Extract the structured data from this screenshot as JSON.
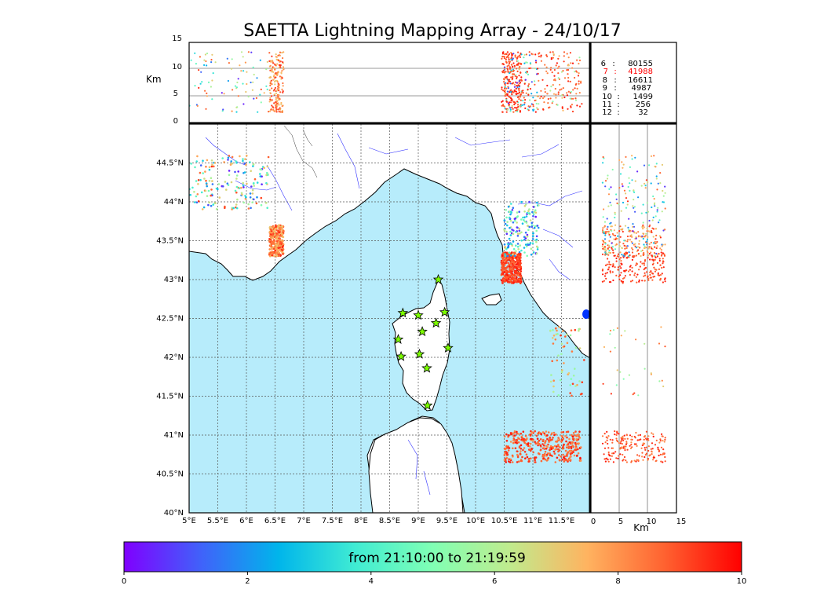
{
  "title": "SAETTA Lightning Mapping Array - 24/10/17",
  "alt_unit": "Km",
  "alt_ticks": [
    "0",
    "5",
    "10",
    "15"
  ],
  "lon_ticks": [
    "5°E",
    "5.5°E",
    "6°E",
    "6.5°E",
    "7°E",
    "7.5°E",
    "8°E",
    "8.5°E",
    "9°E",
    "9.5°E",
    "10°E",
    "10.5°E",
    "11°E",
    "11.5°E"
  ],
  "lat_ticks": [
    "40°N",
    "40.5°N",
    "41°N",
    "41.5°N",
    "42°N",
    "42.5°N",
    "43°N",
    "43.5°N",
    "44°N",
    "44.5°N"
  ],
  "stations_table": [
    {
      "label": "6",
      "value": "80155"
    },
    {
      "label": "7",
      "value": "41988"
    },
    {
      "label": "8",
      "value": "16611"
    },
    {
      "label": "9",
      "value": "4987"
    },
    {
      "label": "10",
      "value": "1499"
    },
    {
      "label": "11",
      "value": "256"
    },
    {
      "label": "12",
      "value": "32"
    }
  ],
  "highlight_color": "#ff0000",
  "colorbar": {
    "text": "from 21:10:00 to 21:19:59",
    "ticks": [
      "0",
      "2",
      "4",
      "6",
      "8",
      "10"
    ],
    "colormap": "rainbow"
  },
  "colors": {
    "sea": "#b7ecfb",
    "land": "#ffffff",
    "station_fill": "#7cfc00",
    "rivers": "#0000ff",
    "grid": "#555555"
  },
  "chart_data": {
    "type": "scatter",
    "title": "SAETTA Lightning Mapping Array - 24/10/17",
    "x": {
      "label": "",
      "range": [
        5,
        12
      ],
      "unit": "deg E"
    },
    "y": {
      "label": "",
      "range": [
        40,
        44.9
      ],
      "unit": "deg N"
    },
    "altitude_range_km": [
      0,
      15
    ],
    "time_range_min": [
      0,
      10
    ],
    "clusters": [
      {
        "lon": [
          5.0,
          6.4
        ],
        "lat": [
          43.9,
          44.6
        ],
        "t": [
          0.3,
          9.5
        ],
        "density": "medium"
      },
      {
        "lon": [
          6.4,
          6.65
        ],
        "lat": [
          43.3,
          43.7
        ],
        "t": [
          7.0,
          9.5
        ],
        "density": "high"
      },
      {
        "lon": [
          10.45,
          10.8
        ],
        "lat": [
          42.95,
          43.35
        ],
        "t": [
          8.5,
          9.8
        ],
        "density": "high"
      },
      {
        "lon": [
          10.5,
          11.1
        ],
        "lat": [
          43.3,
          44.0
        ],
        "t": [
          0.3,
          7.0
        ],
        "density": "medium"
      },
      {
        "lon": [
          10.5,
          11.85
        ],
        "lat": [
          40.65,
          41.05
        ],
        "t": [
          8.0,
          9.8
        ],
        "density": "high"
      },
      {
        "lon": [
          11.3,
          11.9
        ],
        "lat": [
          41.5,
          42.4
        ],
        "t": [
          5.0,
          9.5
        ],
        "density": "low"
      }
    ],
    "stations": [
      {
        "lon": 9.35,
        "lat": 43.0
      },
      {
        "lon": 8.73,
        "lat": 42.57
      },
      {
        "lon": 9.0,
        "lat": 42.54
      },
      {
        "lon": 9.46,
        "lat": 42.58
      },
      {
        "lon": 9.31,
        "lat": 42.44
      },
      {
        "lon": 9.07,
        "lat": 42.33
      },
      {
        "lon": 8.65,
        "lat": 42.23
      },
      {
        "lon": 9.52,
        "lat": 42.12
      },
      {
        "lon": 8.7,
        "lat": 42.01
      },
      {
        "lon": 9.02,
        "lat": 42.04
      },
      {
        "lon": 9.15,
        "lat": 41.86
      },
      {
        "lon": 9.16,
        "lat": 41.38
      }
    ]
  }
}
